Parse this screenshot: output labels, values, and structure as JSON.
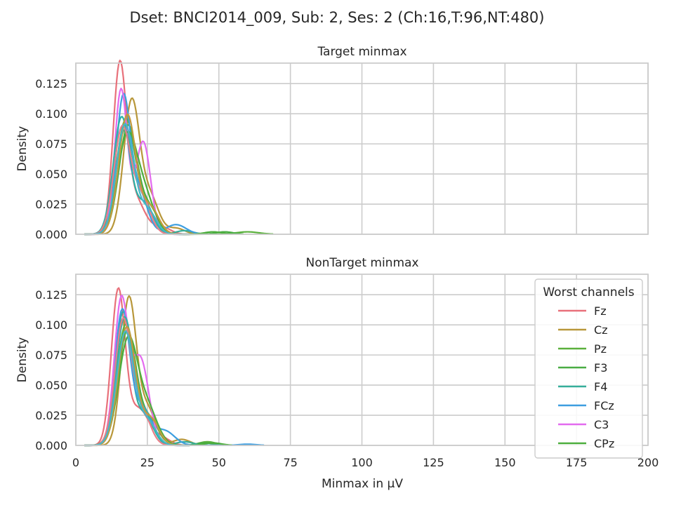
{
  "suptitle": "Dset: BNCI2014_009, Sub: 2, Ses: 2 (Ch:16,T:96,NT:480)",
  "colors": {
    "Fz": "#e8707a",
    "Cz": "#b8973a",
    "Pz": "#5ab03c",
    "F3": "#4aad44",
    "F4": "#36ae9a",
    "FCz": "#3d9ee0",
    "C3": "#e36bef",
    "CPz": "#4dae3e",
    "extra1": "#2bb3a8",
    "extra2": "#e87e88",
    "extra3": "#c49a3e",
    "extra4": "#47b6c8"
  },
  "chart_data": [
    {
      "type": "line",
      "subtype": "kde",
      "title": "Target minmax",
      "xlabel": "",
      "ylabel": "Density",
      "xlim": [
        0,
        200
      ],
      "ylim": [
        0,
        0.142
      ],
      "xticks": [
        0,
        25,
        50,
        75,
        100,
        125,
        150,
        175,
        200
      ],
      "yticks": [
        "0.000",
        "0.025",
        "0.050",
        "0.075",
        "0.100",
        "0.125"
      ],
      "grid": true,
      "series": [
        {
          "name": "Fz",
          "color_key": "Fz",
          "peaks": [
            [
              15.3,
              0.134,
              2.3
            ],
            [
              20.5,
              0.03,
              3.5
            ],
            [
              30,
              0.006,
              3
            ]
          ]
        },
        {
          "name": "Cz",
          "color_key": "Cz",
          "peaks": [
            [
              19.5,
              0.11,
              2.8
            ],
            [
              26,
              0.03,
              3
            ],
            [
              35,
              0.005,
              3
            ]
          ]
        },
        {
          "name": "Pz",
          "color_key": "Pz",
          "peaks": [
            [
              17.5,
              0.095,
              3.3
            ],
            [
              25,
              0.018,
              3
            ],
            [
              60,
              0.002,
              4
            ]
          ]
        },
        {
          "name": "F3",
          "color_key": "F3",
          "peaks": [
            [
              18.3,
              0.09,
              3.2
            ],
            [
              26,
              0.02,
              3
            ],
            [
              52,
              0.002,
              3
            ]
          ]
        },
        {
          "name": "F4",
          "color_key": "F4",
          "peaks": [
            [
              17.0,
              0.085,
              3.0
            ],
            [
              24,
              0.025,
              3
            ],
            [
              38,
              0.003,
              3
            ]
          ]
        },
        {
          "name": "FCz",
          "color_key": "FCz",
          "peaks": [
            [
              16.5,
              0.11,
              2.4
            ],
            [
              22,
              0.035,
              3
            ],
            [
              35,
              0.008,
              3.5
            ]
          ]
        },
        {
          "name": "C3",
          "color_key": "C3",
          "peaks": [
            [
              15.8,
              0.12,
              2.2
            ],
            [
              23.5,
              0.077,
              2.6
            ]
          ]
        },
        {
          "name": "CPz",
          "color_key": "CPz",
          "peaks": [
            [
              17.8,
              0.078,
              3.4
            ],
            [
              24,
              0.03,
              3.5
            ],
            [
              48,
              0.002,
              3
            ]
          ]
        },
        {
          "name": "",
          "color_key": "extra1",
          "peaks": [
            [
              16.0,
              0.097,
              2.9
            ],
            [
              24,
              0.025,
              3
            ]
          ]
        },
        {
          "name": "",
          "color_key": "extra2",
          "peaks": [
            [
              16.2,
              0.088,
              2.9
            ],
            [
              23,
              0.03,
              3
            ]
          ]
        },
        {
          "name": "",
          "color_key": "extra3",
          "peaks": [
            [
              18.0,
              0.099,
              3.0
            ],
            [
              26,
              0.022,
              3
            ]
          ]
        },
        {
          "name": "",
          "color_key": "extra4",
          "peaks": [
            [
              17.2,
              0.091,
              3.0
            ],
            [
              25,
              0.02,
              3
            ]
          ]
        }
      ]
    },
    {
      "type": "line",
      "subtype": "kde",
      "title": "NonTarget minmax",
      "xlabel": "Minmax in μV",
      "ylabel": "Density",
      "xlim": [
        0,
        200
      ],
      "ylim": [
        0,
        0.142
      ],
      "xticks": [
        0,
        25,
        50,
        75,
        100,
        125,
        150,
        175,
        200
      ],
      "yticks": [
        "0.000",
        "0.025",
        "0.050",
        "0.075",
        "0.100",
        "0.125"
      ],
      "grid": true,
      "legend": {
        "title": "Worst channels",
        "position": "right",
        "entries": [
          "Fz",
          "Cz",
          "Pz",
          "F3",
          "F4",
          "FCz",
          "C3",
          "CPz"
        ]
      },
      "series": [
        {
          "name": "Fz",
          "color_key": "Fz",
          "peaks": [
            [
              14.8,
              0.127,
              2.4
            ],
            [
              22,
              0.03,
              3.5
            ],
            [
              30,
              0.006,
              3
            ]
          ]
        },
        {
          "name": "Cz",
          "color_key": "Cz",
          "peaks": [
            [
              18.5,
              0.121,
              2.6
            ],
            [
              25,
              0.03,
              3
            ],
            [
              37,
              0.005,
              3
            ]
          ]
        },
        {
          "name": "Pz",
          "color_key": "Pz",
          "peaks": [
            [
              17.5,
              0.1,
              3.2
            ],
            [
              25,
              0.018,
              3
            ],
            [
              46,
              0.003,
              3
            ]
          ]
        },
        {
          "name": "F3",
          "color_key": "F3",
          "peaks": [
            [
              18.0,
              0.095,
              3.2
            ],
            [
              26,
              0.02,
              3
            ],
            [
              45,
              0.002,
              3
            ]
          ]
        },
        {
          "name": "F4",
          "color_key": "F4",
          "peaks": [
            [
              16.5,
              0.11,
              2.7
            ],
            [
              24,
              0.025,
              3
            ],
            [
              38,
              0.003,
              3
            ]
          ]
        },
        {
          "name": "FCz",
          "color_key": "FCz",
          "peaks": [
            [
              16.2,
              0.111,
              2.6
            ],
            [
              23,
              0.03,
              3
            ],
            [
              31,
              0.012,
              3.5
            ],
            [
              60,
              0.001,
              3
            ]
          ]
        },
        {
          "name": "C3",
          "color_key": "C3",
          "peaks": [
            [
              15.8,
              0.118,
              2.4
            ],
            [
              22.5,
              0.072,
              3.0
            ]
          ]
        },
        {
          "name": "CPz",
          "color_key": "CPz",
          "peaks": [
            [
              18.2,
              0.086,
              3.3
            ],
            [
              25,
              0.03,
              3.5
            ],
            [
              48,
              0.002,
              3
            ]
          ]
        },
        {
          "name": "",
          "color_key": "extra1",
          "peaks": [
            [
              17.0,
              0.105,
              2.9
            ],
            [
              24,
              0.025,
              3
            ]
          ]
        },
        {
          "name": "",
          "color_key": "extra2",
          "peaks": [
            [
              16.5,
              0.103,
              2.8
            ],
            [
              23,
              0.028,
              3
            ]
          ]
        },
        {
          "name": "",
          "color_key": "extra3",
          "peaks": [
            [
              17.8,
              0.098,
              3.0
            ],
            [
              26,
              0.022,
              3
            ]
          ]
        },
        {
          "name": "",
          "color_key": "extra4",
          "peaks": [
            [
              17.3,
              0.094,
              3.0
            ],
            [
              25,
              0.02,
              3
            ]
          ]
        }
      ]
    }
  ]
}
